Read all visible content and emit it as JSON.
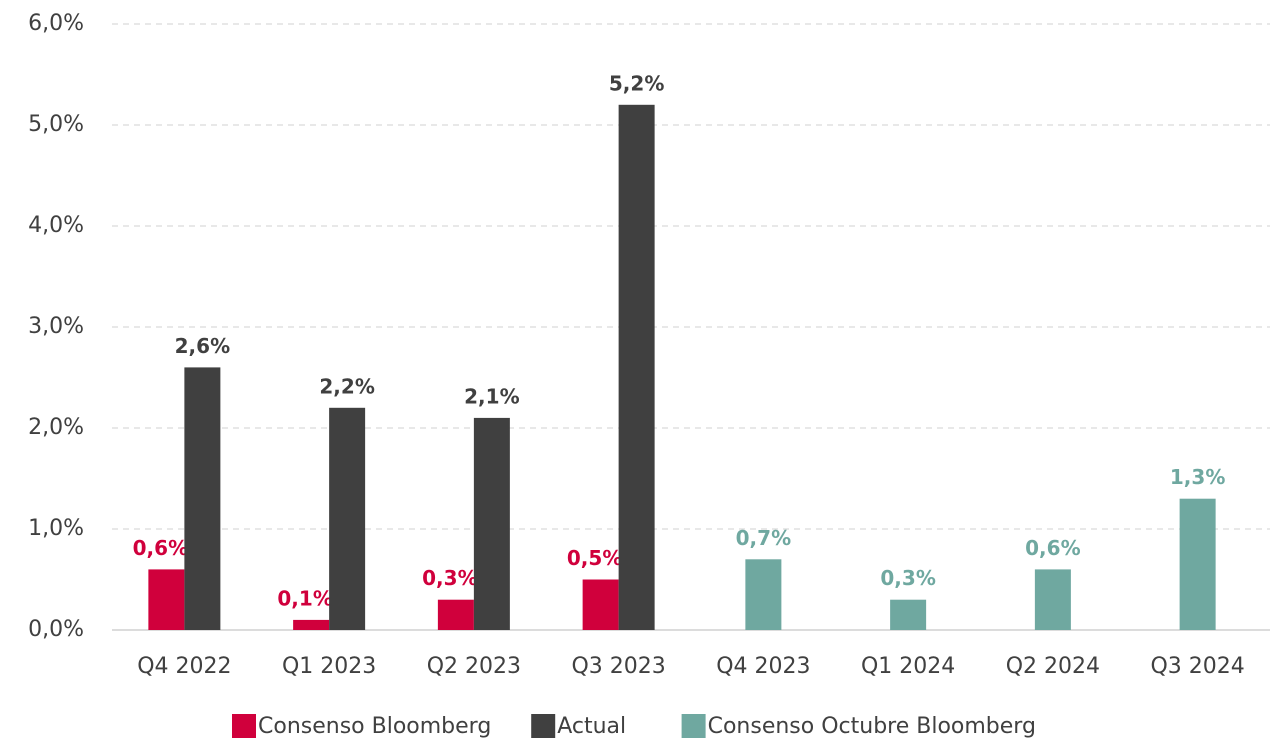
{
  "chart_data": {
    "type": "bar",
    "categories": [
      "Q4 2022",
      "Q1 2023",
      "Q2 2023",
      "Q3 2023",
      "Q4 2023",
      "Q1 2024",
      "Q2 2024",
      "Q3 2024"
    ],
    "series": [
      {
        "name": "Consenso Bloomberg",
        "color": "#d0003c",
        "values": [
          0.6,
          0.1,
          0.3,
          0.5,
          null,
          null,
          null,
          null
        ],
        "value_labels": [
          "0,6%",
          "0,1%",
          "0,3%",
          "0,5%",
          null,
          null,
          null,
          null
        ]
      },
      {
        "name": "Actual",
        "color": "#404040",
        "values": [
          2.6,
          2.2,
          2.1,
          5.2,
          null,
          null,
          null,
          null
        ],
        "value_labels": [
          "2,6%",
          "2,2%",
          "2,1%",
          "5,2%",
          null,
          null,
          null,
          null
        ]
      },
      {
        "name": "Consenso Octubre Bloomberg",
        "color": "#6fa8a0",
        "values": [
          null,
          null,
          null,
          null,
          0.7,
          0.3,
          0.6,
          1.3
        ],
        "value_labels": [
          null,
          null,
          null,
          null,
          "0,7%",
          "0,3%",
          "0,6%",
          "1,3%"
        ]
      }
    ],
    "ylim": [
      0,
      6
    ],
    "yticks": [
      {
        "value": 0,
        "label": "0,0%"
      },
      {
        "value": 1,
        "label": "1,0%"
      },
      {
        "value": 2,
        "label": "2,0%"
      },
      {
        "value": 3,
        "label": "3,0%"
      },
      {
        "value": 4,
        "label": "4,0%"
      },
      {
        "value": 5,
        "label": "5,0%"
      },
      {
        "value": 6,
        "label": "6,0%"
      }
    ],
    "grid": true,
    "legend": "bottom"
  }
}
